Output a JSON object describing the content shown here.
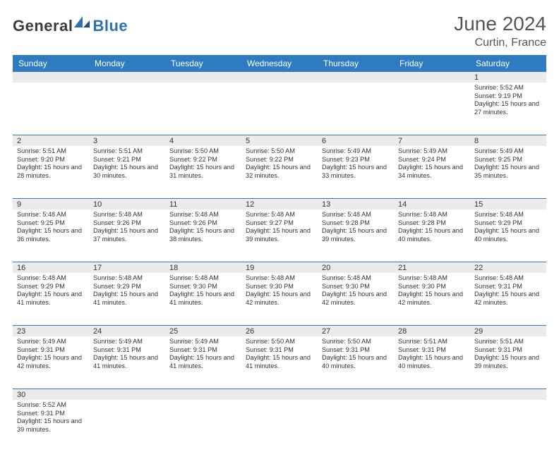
{
  "logo": {
    "text1": "General",
    "text2": "Blue"
  },
  "title": "June 2024",
  "location": "Curtin, France",
  "header_bg": "#2f7bbf",
  "header_fg": "#ffffff",
  "daynum_bg": "#ebebeb",
  "border_color": "#2f7bbf",
  "days_of_week": [
    "Sunday",
    "Monday",
    "Tuesday",
    "Wednesday",
    "Thursday",
    "Friday",
    "Saturday"
  ],
  "weeks": [
    {
      "nums": [
        "",
        "",
        "",
        "",
        "",
        "",
        "1"
      ],
      "cells": [
        null,
        null,
        null,
        null,
        null,
        null,
        {
          "sunrise": "Sunrise: 5:52 AM",
          "sunset": "Sunset: 9:19 PM",
          "daylight": "Daylight: 15 hours and 27 minutes."
        }
      ]
    },
    {
      "nums": [
        "2",
        "3",
        "4",
        "5",
        "6",
        "7",
        "8"
      ],
      "cells": [
        {
          "sunrise": "Sunrise: 5:51 AM",
          "sunset": "Sunset: 9:20 PM",
          "daylight": "Daylight: 15 hours and 28 minutes."
        },
        {
          "sunrise": "Sunrise: 5:51 AM",
          "sunset": "Sunset: 9:21 PM",
          "daylight": "Daylight: 15 hours and 30 minutes."
        },
        {
          "sunrise": "Sunrise: 5:50 AM",
          "sunset": "Sunset: 9:22 PM",
          "daylight": "Daylight: 15 hours and 31 minutes."
        },
        {
          "sunrise": "Sunrise: 5:50 AM",
          "sunset": "Sunset: 9:22 PM",
          "daylight": "Daylight: 15 hours and 32 minutes."
        },
        {
          "sunrise": "Sunrise: 5:49 AM",
          "sunset": "Sunset: 9:23 PM",
          "daylight": "Daylight: 15 hours and 33 minutes."
        },
        {
          "sunrise": "Sunrise: 5:49 AM",
          "sunset": "Sunset: 9:24 PM",
          "daylight": "Daylight: 15 hours and 34 minutes."
        },
        {
          "sunrise": "Sunrise: 5:49 AM",
          "sunset": "Sunset: 9:25 PM",
          "daylight": "Daylight: 15 hours and 35 minutes."
        }
      ]
    },
    {
      "nums": [
        "9",
        "10",
        "11",
        "12",
        "13",
        "14",
        "15"
      ],
      "cells": [
        {
          "sunrise": "Sunrise: 5:48 AM",
          "sunset": "Sunset: 9:25 PM",
          "daylight": "Daylight: 15 hours and 36 minutes."
        },
        {
          "sunrise": "Sunrise: 5:48 AM",
          "sunset": "Sunset: 9:26 PM",
          "daylight": "Daylight: 15 hours and 37 minutes."
        },
        {
          "sunrise": "Sunrise: 5:48 AM",
          "sunset": "Sunset: 9:26 PM",
          "daylight": "Daylight: 15 hours and 38 minutes."
        },
        {
          "sunrise": "Sunrise: 5:48 AM",
          "sunset": "Sunset: 9:27 PM",
          "daylight": "Daylight: 15 hours and 39 minutes."
        },
        {
          "sunrise": "Sunrise: 5:48 AM",
          "sunset": "Sunset: 9:28 PM",
          "daylight": "Daylight: 15 hours and 39 minutes."
        },
        {
          "sunrise": "Sunrise: 5:48 AM",
          "sunset": "Sunset: 9:28 PM",
          "daylight": "Daylight: 15 hours and 40 minutes."
        },
        {
          "sunrise": "Sunrise: 5:48 AM",
          "sunset": "Sunset: 9:29 PM",
          "daylight": "Daylight: 15 hours and 40 minutes."
        }
      ]
    },
    {
      "nums": [
        "16",
        "17",
        "18",
        "19",
        "20",
        "21",
        "22"
      ],
      "cells": [
        {
          "sunrise": "Sunrise: 5:48 AM",
          "sunset": "Sunset: 9:29 PM",
          "daylight": "Daylight: 15 hours and 41 minutes."
        },
        {
          "sunrise": "Sunrise: 5:48 AM",
          "sunset": "Sunset: 9:29 PM",
          "daylight": "Daylight: 15 hours and 41 minutes."
        },
        {
          "sunrise": "Sunrise: 5:48 AM",
          "sunset": "Sunset: 9:30 PM",
          "daylight": "Daylight: 15 hours and 41 minutes."
        },
        {
          "sunrise": "Sunrise: 5:48 AM",
          "sunset": "Sunset: 9:30 PM",
          "daylight": "Daylight: 15 hours and 42 minutes."
        },
        {
          "sunrise": "Sunrise: 5:48 AM",
          "sunset": "Sunset: 9:30 PM",
          "daylight": "Daylight: 15 hours and 42 minutes."
        },
        {
          "sunrise": "Sunrise: 5:48 AM",
          "sunset": "Sunset: 9:30 PM",
          "daylight": "Daylight: 15 hours and 42 minutes."
        },
        {
          "sunrise": "Sunrise: 5:48 AM",
          "sunset": "Sunset: 9:31 PM",
          "daylight": "Daylight: 15 hours and 42 minutes."
        }
      ]
    },
    {
      "nums": [
        "23",
        "24",
        "25",
        "26",
        "27",
        "28",
        "29"
      ],
      "cells": [
        {
          "sunrise": "Sunrise: 5:49 AM",
          "sunset": "Sunset: 9:31 PM",
          "daylight": "Daylight: 15 hours and 42 minutes."
        },
        {
          "sunrise": "Sunrise: 5:49 AM",
          "sunset": "Sunset: 9:31 PM",
          "daylight": "Daylight: 15 hours and 41 minutes."
        },
        {
          "sunrise": "Sunrise: 5:49 AM",
          "sunset": "Sunset: 9:31 PM",
          "daylight": "Daylight: 15 hours and 41 minutes."
        },
        {
          "sunrise": "Sunrise: 5:50 AM",
          "sunset": "Sunset: 9:31 PM",
          "daylight": "Daylight: 15 hours and 41 minutes."
        },
        {
          "sunrise": "Sunrise: 5:50 AM",
          "sunset": "Sunset: 9:31 PM",
          "daylight": "Daylight: 15 hours and 40 minutes."
        },
        {
          "sunrise": "Sunrise: 5:51 AM",
          "sunset": "Sunset: 9:31 PM",
          "daylight": "Daylight: 15 hours and 40 minutes."
        },
        {
          "sunrise": "Sunrise: 5:51 AM",
          "sunset": "Sunset: 9:31 PM",
          "daylight": "Daylight: 15 hours and 39 minutes."
        }
      ]
    },
    {
      "nums": [
        "30",
        "",
        "",
        "",
        "",
        "",
        ""
      ],
      "cells": [
        {
          "sunrise": "Sunrise: 5:52 AM",
          "sunset": "Sunset: 9:31 PM",
          "daylight": "Daylight: 15 hours and 39 minutes."
        },
        null,
        null,
        null,
        null,
        null,
        null
      ]
    }
  ]
}
